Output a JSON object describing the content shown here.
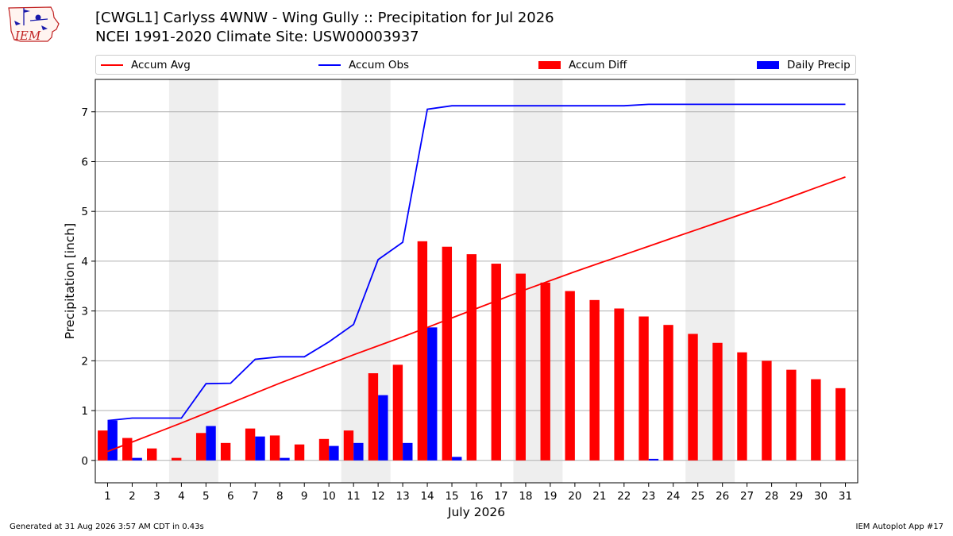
{
  "title": {
    "line1": "[CWGL1] Carlyss 4WNW - Wing Gully :: Precipitation for Jul 2026",
    "line2": "NCEI 1991-2020 Climate Site: USW00003937"
  },
  "logo": {
    "text": "IEM",
    "icon": "iem-iowa-logo-icon"
  },
  "footer": {
    "left": "Generated at 31 Aug 2026 3:57 AM CDT in 0.43s",
    "right": "IEM Autoplot App #17"
  },
  "colors": {
    "avg": "#ff0000",
    "obs": "#0000ff",
    "diff": "#ff0000",
    "daily": "#0000ff",
    "weekend": "#eeeeee"
  },
  "chart_data": {
    "type": "bar",
    "xlabel": "July 2026",
    "ylabel": "Precipitation [inch]",
    "xlim": [
      0.5,
      31.5
    ],
    "ylim": [
      -0.45,
      7.65
    ],
    "yticks": [
      0,
      1,
      2,
      3,
      4,
      5,
      6,
      7
    ],
    "grid": "horizontal",
    "legend_position": "top",
    "categories": [
      "1",
      "2",
      "3",
      "4",
      "5",
      "6",
      "7",
      "8",
      "9",
      "10",
      "11",
      "12",
      "13",
      "14",
      "15",
      "16",
      "17",
      "18",
      "19",
      "20",
      "21",
      "22",
      "23",
      "24",
      "25",
      "26",
      "27",
      "28",
      "29",
      "30",
      "31"
    ],
    "weekend_bands": [
      [
        4,
        5
      ],
      [
        11,
        12
      ],
      [
        18,
        19
      ],
      [
        25,
        26
      ]
    ],
    "series": [
      {
        "name": "Accum Avg",
        "kind": "line",
        "values": [
          0.18,
          0.37,
          0.56,
          0.75,
          0.95,
          1.15,
          1.35,
          1.55,
          1.74,
          1.93,
          2.12,
          2.3,
          2.48,
          2.67,
          2.86,
          3.05,
          3.24,
          3.43,
          3.61,
          3.79,
          3.96,
          4.13,
          4.3,
          4.47,
          4.64,
          4.81,
          4.98,
          5.15,
          5.33,
          5.51,
          5.69
        ]
      },
      {
        "name": "Accum Obs",
        "kind": "line",
        "values": [
          0.8,
          0.85,
          0.85,
          0.85,
          1.54,
          1.55,
          2.03,
          2.08,
          2.08,
          2.38,
          2.73,
          4.03,
          4.38,
          7.05,
          7.12,
          7.12,
          7.12,
          7.12,
          7.12,
          7.12,
          7.12,
          7.12,
          7.15,
          7.15,
          7.15,
          7.15,
          7.15,
          7.15,
          7.15,
          7.15,
          7.15
        ]
      },
      {
        "name": "Accum Diff",
        "kind": "bar",
        "values": [
          0.6,
          0.45,
          0.24,
          0.05,
          0.55,
          0.35,
          0.64,
          0.5,
          0.32,
          0.43,
          0.6,
          1.75,
          1.92,
          4.4,
          4.29,
          4.14,
          3.95,
          3.75,
          3.57,
          3.4,
          3.22,
          3.05,
          2.89,
          2.72,
          2.54,
          2.36,
          2.17,
          2.0,
          1.82,
          1.63,
          1.45
        ]
      },
      {
        "name": "Daily Precip",
        "kind": "bar",
        "values": [
          0.8,
          0.05,
          0,
          0,
          0.69,
          0,
          0.48,
          0.05,
          0,
          0.29,
          0.35,
          1.31,
          0.35,
          2.67,
          0.07,
          0,
          0,
          0,
          0,
          0,
          0,
          0,
          0.03,
          0,
          0,
          0,
          0,
          0,
          0,
          0,
          0
        ]
      }
    ]
  }
}
